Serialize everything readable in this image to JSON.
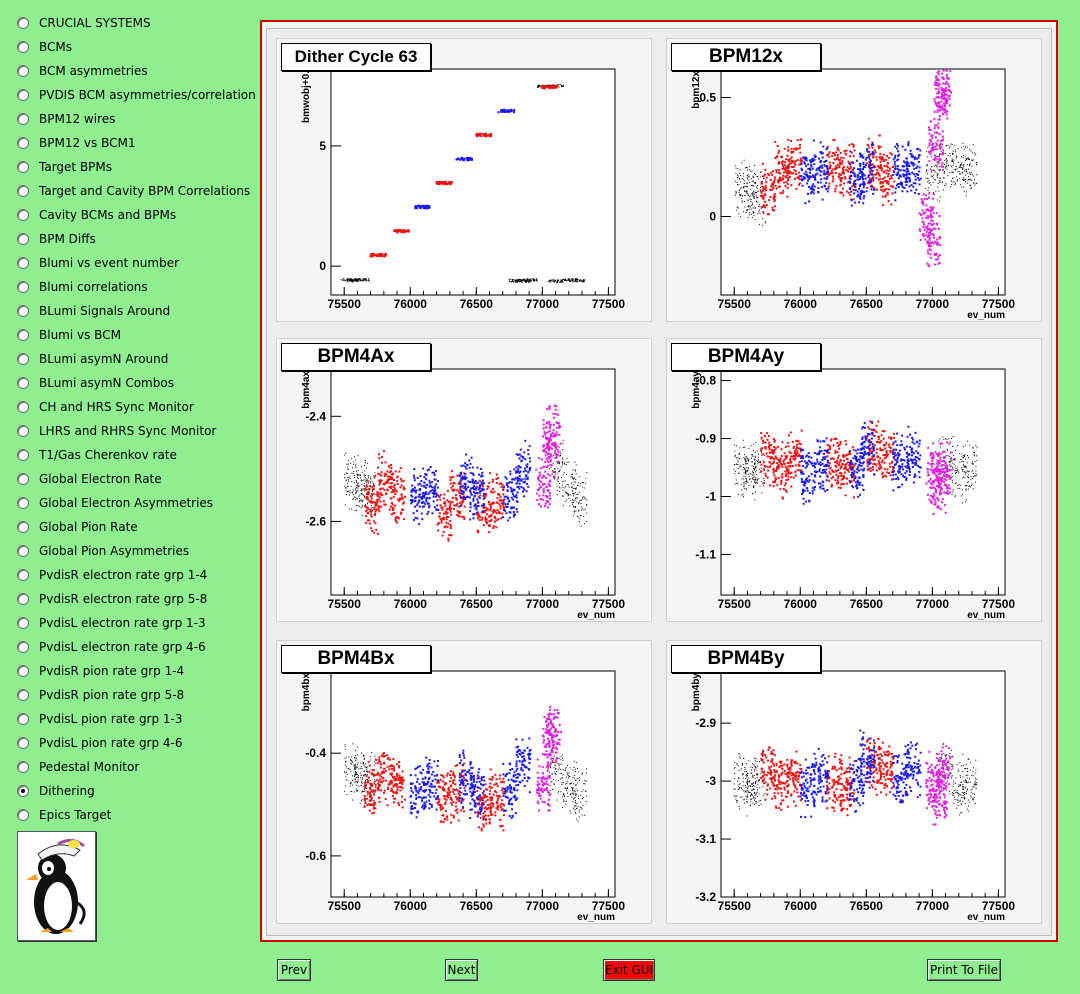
{
  "sidebar": {
    "items": [
      {
        "label": "CRUCIAL SYSTEMS",
        "selected": false
      },
      {
        "label": "BCMs",
        "selected": false
      },
      {
        "label": "BCM asymmetries",
        "selected": false
      },
      {
        "label": "PVDIS BCM asymmetries/correlation",
        "selected": false
      },
      {
        "label": "BPM12 wires",
        "selected": false
      },
      {
        "label": "BPM12 vs BCM1",
        "selected": false
      },
      {
        "label": "Target BPMs",
        "selected": false
      },
      {
        "label": "Target and Cavity BPM Correlations",
        "selected": false
      },
      {
        "label": "Cavity BCMs and BPMs",
        "selected": false
      },
      {
        "label": "BPM Diffs",
        "selected": false
      },
      {
        "label": "Blumi vs event number",
        "selected": false
      },
      {
        "label": "Blumi correlations",
        "selected": false
      },
      {
        "label": "BLumi Signals Around",
        "selected": false
      },
      {
        "label": "Blumi vs BCM",
        "selected": false
      },
      {
        "label": "BLumi asymN Around",
        "selected": false
      },
      {
        "label": "BLumi asymN Combos",
        "selected": false
      },
      {
        "label": "CH and HRS Sync Monitor",
        "selected": false
      },
      {
        "label": "LHRS and RHRS Sync Monitor",
        "selected": false
      },
      {
        "label": "T1/Gas Cherenkov rate",
        "selected": false
      },
      {
        "label": "Global Electron Rate",
        "selected": false
      },
      {
        "label": "Global Electron Asymmetries",
        "selected": false
      },
      {
        "label": "Global Pion Rate",
        "selected": false
      },
      {
        "label": "Global Pion Asymmetries",
        "selected": false
      },
      {
        "label": "PvdisR electron rate grp 1-4",
        "selected": false
      },
      {
        "label": "PvdisR electron rate grp 5-8",
        "selected": false
      },
      {
        "label": "PvdisL electron rate grp 1-3",
        "selected": false
      },
      {
        "label": "PvdisL electron rate grp 4-6",
        "selected": false
      },
      {
        "label": "PvdisR pion rate grp 1-4",
        "selected": false
      },
      {
        "label": "PvdisR pion rate grp 5-8",
        "selected": false
      },
      {
        "label": "PvdisL pion rate grp 1-3",
        "selected": false
      },
      {
        "label": "PvdisL pion rate grp 4-6",
        "selected": false
      },
      {
        "label": "Pedestal Monitor",
        "selected": false
      },
      {
        "label": "Dithering",
        "selected": true
      },
      {
        "label": "Epics Target",
        "selected": false
      }
    ]
  },
  "buttons": {
    "prev": "Prev",
    "next": "Next",
    "exit": "Exit GUI",
    "print": "Print To File"
  },
  "colors": {
    "background": "#8fee90",
    "frame_border": "#cc0000",
    "exit_button": "#ff0000",
    "series_red": "#ee1111",
    "series_blue": "#1a1aee",
    "series_magenta": "#e020e0",
    "series_black": "#000000"
  },
  "chart_data": [
    {
      "type": "scatter",
      "title": "Dither Cycle  63",
      "ylabel": "bmwobj+0.",
      "xlabel": "",
      "xlim": [
        75400,
        77550
      ],
      "ylim": [
        -1.2,
        8.2
      ],
      "xticks": [
        75500,
        76000,
        76500,
        77000,
        77500
      ],
      "yticks": [
        0,
        5
      ],
      "ytick_labels": [
        "0",
        "5"
      ],
      "series": [
        {
          "color": "black",
          "values": [
            [
              75530,
              -0.55
            ],
            [
              75580,
              -0.58
            ],
            [
              75630,
              -0.55
            ],
            [
              76800,
              -0.58
            ],
            [
              76850,
              -0.6
            ],
            [
              76900,
              -0.55
            ],
            [
              77100,
              -0.6
            ],
            [
              77200,
              -0.55
            ],
            [
              77260,
              -0.58
            ],
            [
              77020,
              7.5
            ],
            [
              77100,
              7.52
            ]
          ]
        },
        {
          "color": "red",
          "values": [
            [
              75750,
              0.5
            ],
            [
              75930,
              1.5
            ],
            [
              76250,
              3.5
            ],
            [
              76550,
              5.5
            ],
            [
              77050,
              7.5
            ]
          ]
        },
        {
          "color": "blue",
          "values": [
            [
              76080,
              2.5
            ],
            [
              76400,
              4.5
            ],
            [
              76720,
              6.5
            ]
          ]
        }
      ]
    },
    {
      "type": "scatter",
      "title": "BPM12x",
      "ylabel": "bpm12x",
      "xlabel": "ev_num",
      "xlim": [
        75400,
        77550
      ],
      "ylim": [
        -0.33,
        0.62
      ],
      "xticks": [
        75500,
        76000,
        76500,
        77000,
        77500
      ],
      "yticks": [
        0,
        0.5
      ],
      "ytick_labels": [
        "0",
        "0.5"
      ],
      "series": [
        {
          "color": "black",
          "values": [
            [
              75560,
              0.12
            ],
            [
              75620,
              0.1
            ],
            [
              75680,
              0.09
            ],
            [
              77000,
              0.18
            ],
            [
              77100,
              0.2
            ],
            [
              77200,
              0.19
            ],
            [
              77280,
              0.2
            ]
          ]
        },
        {
          "color": "red",
          "values": [
            [
              75750,
              0.12
            ],
            [
              75850,
              0.2
            ],
            [
              75950,
              0.22
            ],
            [
              76250,
              0.22
            ],
            [
              76350,
              0.2
            ],
            [
              76550,
              0.22
            ],
            [
              76650,
              0.18
            ]
          ]
        },
        {
          "color": "blue",
          "values": [
            [
              76050,
              0.18
            ],
            [
              76150,
              0.2
            ],
            [
              76420,
              0.16
            ],
            [
              76500,
              0.2
            ],
            [
              76750,
              0.2
            ],
            [
              76850,
              0.21
            ]
          ]
        },
        {
          "color": "magenta",
          "values": [
            [
              76950,
              0.0
            ],
            [
              77000,
              -0.1
            ],
            [
              77020,
              0.3
            ],
            [
              77060,
              0.5
            ],
            [
              77080,
              0.55
            ]
          ]
        }
      ]
    },
    {
      "type": "scatter",
      "title": "BPM4Ax",
      "ylabel": "bpm4ax",
      "xlabel": "ev_num",
      "xlim": [
        75400,
        77550
      ],
      "ylim": [
        -2.74,
        -2.31
      ],
      "xticks": [
        75500,
        76000,
        76500,
        77000,
        77500
      ],
      "yticks": [
        -2.4,
        -2.6
      ],
      "ytick_labels": [
        "-2.4",
        "-2.6"
      ],
      "series": [
        {
          "color": "black",
          "values": [
            [
              75550,
              -2.52
            ],
            [
              75620,
              -2.53
            ],
            [
              75680,
              -2.54
            ],
            [
              77100,
              -2.5
            ],
            [
              77200,
              -2.53
            ],
            [
              77280,
              -2.56
            ]
          ]
        },
        {
          "color": "red",
          "values": [
            [
              75700,
              -2.57
            ],
            [
              75800,
              -2.52
            ],
            [
              75900,
              -2.55
            ],
            [
              76250,
              -2.58
            ],
            [
              76350,
              -2.55
            ],
            [
              76550,
              -2.57
            ],
            [
              76650,
              -2.56
            ]
          ]
        },
        {
          "color": "blue",
          "values": [
            [
              76050,
              -2.55
            ],
            [
              76150,
              -2.54
            ],
            [
              76420,
              -2.52
            ],
            [
              76500,
              -2.54
            ],
            [
              76750,
              -2.55
            ],
            [
              76850,
              -2.5
            ]
          ]
        },
        {
          "color": "magenta",
          "values": [
            [
              77000,
              -2.53
            ],
            [
              77050,
              -2.46
            ],
            [
              77080,
              -2.43
            ]
          ]
        }
      ]
    },
    {
      "type": "scatter",
      "title": "BPM4Ay",
      "ylabel": "bpm4ay",
      "xlabel": "ev_num",
      "xlim": [
        75400,
        77550
      ],
      "ylim": [
        -1.17,
        -0.78
      ],
      "xticks": [
        75500,
        76000,
        76500,
        77000,
        77500
      ],
      "yticks": [
        -0.8,
        -0.9,
        -1,
        -1.1
      ],
      "ytick_labels": [
        "-0.8",
        "-0.9",
        "-1",
        "-1.1"
      ],
      "series": [
        {
          "color": "black",
          "values": [
            [
              75550,
              -0.95
            ],
            [
              75620,
              -0.96
            ],
            [
              75680,
              -0.95
            ],
            [
              77100,
              -0.94
            ],
            [
              77200,
              -0.96
            ],
            [
              77280,
              -0.95
            ]
          ]
        },
        {
          "color": "red",
          "values": [
            [
              75750,
              -0.93
            ],
            [
              75850,
              -0.95
            ],
            [
              75950,
              -0.93
            ],
            [
              76250,
              -0.94
            ],
            [
              76350,
              -0.95
            ],
            [
              76550,
              -0.92
            ],
            [
              76650,
              -0.93
            ]
          ]
        },
        {
          "color": "blue",
          "values": [
            [
              76050,
              -0.96
            ],
            [
              76150,
              -0.94
            ],
            [
              76420,
              -0.95
            ],
            [
              76500,
              -0.92
            ],
            [
              76750,
              -0.94
            ],
            [
              76850,
              -0.93
            ]
          ]
        },
        {
          "color": "magenta",
          "values": [
            [
              77000,
              -0.96
            ],
            [
              77050,
              -0.98
            ],
            [
              77080,
              -0.95
            ]
          ]
        }
      ]
    },
    {
      "type": "scatter",
      "title": "BPM4Bx",
      "ylabel": "bpm4bx",
      "xlabel": "ev_num",
      "xlim": [
        75400,
        77550
      ],
      "ylim": [
        -0.68,
        -0.24
      ],
      "xticks": [
        75500,
        76000,
        76500,
        77000,
        77500
      ],
      "yticks": [
        -0.4,
        -0.6
      ],
      "ytick_labels": [
        "-0.4",
        "-0.6"
      ],
      "series": [
        {
          "color": "black",
          "values": [
            [
              75550,
              -0.43
            ],
            [
              75620,
              -0.44
            ],
            [
              75680,
              -0.45
            ],
            [
              77100,
              -0.43
            ],
            [
              77200,
              -0.46
            ],
            [
              77280,
              -0.48
            ]
          ]
        },
        {
          "color": "red",
          "values": [
            [
              75700,
              -0.47
            ],
            [
              75800,
              -0.44
            ],
            [
              75900,
              -0.46
            ],
            [
              76250,
              -0.49
            ],
            [
              76350,
              -0.47
            ],
            [
              76550,
              -0.5
            ],
            [
              76650,
              -0.49
            ]
          ]
        },
        {
          "color": "blue",
          "values": [
            [
              76050,
              -0.47
            ],
            [
              76150,
              -0.46
            ],
            [
              76420,
              -0.45
            ],
            [
              76500,
              -0.48
            ],
            [
              76750,
              -0.47
            ],
            [
              76850,
              -0.42
            ]
          ]
        },
        {
          "color": "magenta",
          "values": [
            [
              77000,
              -0.46
            ],
            [
              77050,
              -0.38
            ],
            [
              77080,
              -0.35
            ]
          ]
        }
      ]
    },
    {
      "type": "scatter",
      "title": "BPM4By",
      "ylabel": "bpm4by",
      "xlabel": "ev_num",
      "xlim": [
        75400,
        77550
      ],
      "ylim": [
        -3.2,
        -2.81
      ],
      "xticks": [
        75500,
        76000,
        76500,
        77000,
        77500
      ],
      "yticks": [
        -2.9,
        -3,
        -3.1,
        -3.2
      ],
      "ytick_labels": [
        "-2.9",
        "-3",
        "-3.1",
        "-3.2"
      ],
      "series": [
        {
          "color": "black",
          "values": [
            [
              75550,
              -3.0
            ],
            [
              75620,
              -3.01
            ],
            [
              75680,
              -3.0
            ],
            [
              77100,
              -2.98
            ],
            [
              77200,
              -3.01
            ],
            [
              77280,
              -3.0
            ]
          ]
        },
        {
          "color": "red",
          "values": [
            [
              75750,
              -2.98
            ],
            [
              75850,
              -3.0
            ],
            [
              75950,
              -2.99
            ],
            [
              76250,
              -3.0
            ],
            [
              76350,
              -3.01
            ],
            [
              76550,
              -2.97
            ],
            [
              76650,
              -2.98
            ]
          ]
        },
        {
          "color": "blue",
          "values": [
            [
              76050,
              -3.01
            ],
            [
              76150,
              -2.99
            ],
            [
              76420,
              -3.0
            ],
            [
              76500,
              -2.96
            ],
            [
              76750,
              -2.99
            ],
            [
              76850,
              -2.98
            ]
          ]
        },
        {
          "color": "magenta",
          "values": [
            [
              77000,
              -3.0
            ],
            [
              77050,
              -3.03
            ],
            [
              77080,
              -2.98
            ]
          ]
        }
      ]
    }
  ]
}
